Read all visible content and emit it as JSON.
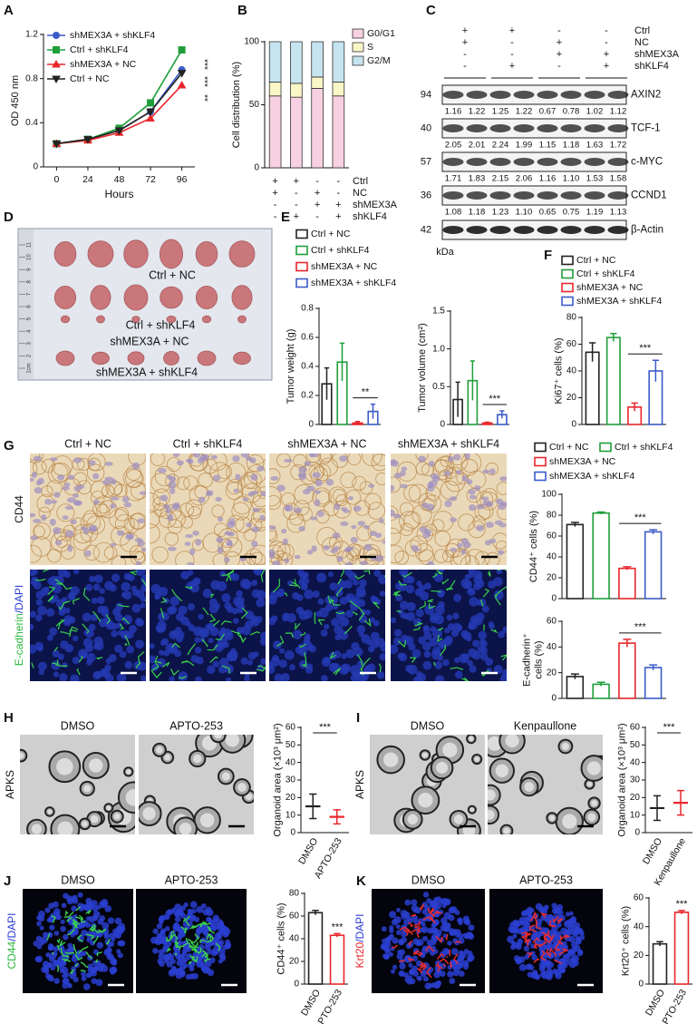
{
  "panel_letters": [
    "A",
    "B",
    "C",
    "D",
    "E",
    "F",
    "G",
    "H",
    "I",
    "J",
    "K"
  ],
  "group_legend": {
    "names": [
      "Ctrl + NC",
      "Ctrl + shKLF4",
      "shMEX3A + NC",
      "shMEX3A + shKLF4"
    ],
    "colors": [
      "#222222",
      "#1f9e3a",
      "#e8262b",
      "#3b5bc9"
    ]
  },
  "chart_data": [
    {
      "type": "line",
      "x_label": "Hours",
      "y_label": "OD 450 nm",
      "x": [
        0,
        24,
        48,
        72,
        96
      ],
      "xlim": [
        -10,
        106
      ],
      "xticks": [
        0,
        24,
        48,
        72,
        96
      ],
      "ylim": [
        0,
        1.2
      ],
      "yticks": [
        0,
        0.4,
        0.8,
        1.2
      ],
      "series": [
        {
          "name": "shMEX3A + shKLF4",
          "color": "#3b5bc9",
          "marker": "circle",
          "values": [
            0.21,
            0.25,
            0.33,
            0.5,
            0.88
          ]
        },
        {
          "name": "Ctrl + shKLF4",
          "color": "#1f9e3a",
          "marker": "square",
          "values": [
            0.21,
            0.25,
            0.35,
            0.58,
            1.06
          ]
        },
        {
          "name": "shMEX3A + NC",
          "color": "#e8262b",
          "marker": "triangle",
          "values": [
            0.21,
            0.24,
            0.31,
            0.44,
            0.74
          ]
        },
        {
          "name": "Ctrl + NC",
          "color": "#222222",
          "marker": "triangle-down",
          "values": [
            0.21,
            0.25,
            0.33,
            0.5,
            0.85
          ]
        }
      ],
      "annotations": [
        "***",
        "***",
        "**"
      ]
    },
    {
      "type": "stacked_bar",
      "y_label": "Cell distribution (%)",
      "ylim": [
        0,
        100
      ],
      "yticks": [
        0,
        50,
        100
      ],
      "series": [
        {
          "name": "G0/G1",
          "color": "#f7d0e1",
          "values": [
            57,
            56,
            63,
            57
          ]
        },
        {
          "name": "S",
          "color": "#fbf6c6",
          "values": [
            11,
            11,
            9,
            11
          ]
        },
        {
          "name": "G2/M",
          "color": "#c6e4ef",
          "values": [
            32,
            33,
            28,
            32
          ]
        }
      ],
      "sign_rows": [
        {
          "label": "Ctrl",
          "signs": [
            "+",
            "+",
            "-",
            "-"
          ]
        },
        {
          "label": "NC",
          "signs": [
            "+",
            "-",
            "+",
            "-"
          ]
        },
        {
          "label": "shMEX3A",
          "signs": [
            "-",
            "-",
            "+",
            "+"
          ]
        },
        {
          "label": "shKLF4",
          "signs": [
            "-",
            "+",
            "-",
            "+"
          ]
        }
      ]
    },
    {
      "type": "bar",
      "bar_style": "outline",
      "y_label": "Tumor weight (g)",
      "ylim": [
        0,
        0.8
      ],
      "yticks": [
        0,
        0.2,
        0.4,
        0.6,
        0.8
      ],
      "values": [
        0.28,
        0.43,
        0.01,
        0.09
      ],
      "errors": [
        0.11,
        0.13,
        0.01,
        0.05
      ],
      "colors": [
        "#222222",
        "#1f9e3a",
        "#e8262b",
        "#3b5bc9"
      ],
      "annotation": "**"
    },
    {
      "type": "bar",
      "bar_style": "outline",
      "y_label": "Tumor volume (cm²)",
      "ylim": [
        0,
        1.5
      ],
      "yticks": [
        0,
        0.5,
        {
          "value": 1,
          "label": "1.0"
        },
        1.5
      ],
      "values": [
        0.33,
        0.58,
        0.02,
        0.13
      ],
      "errors": [
        0.23,
        0.26,
        0.01,
        0.05
      ],
      "colors": [
        "#222222",
        "#1f9e3a",
        "#e8262b",
        "#3b5bc9"
      ],
      "annotation": "***"
    },
    {
      "type": "bar",
      "bar_style": "outline",
      "y_label": "Ki67⁺ cells (%)",
      "ylim": [
        0,
        80
      ],
      "yticks": [
        0,
        20,
        40,
        60,
        80
      ],
      "values": [
        54,
        65,
        13,
        40
      ],
      "errors": [
        7,
        3,
        3,
        8
      ],
      "colors": [
        "#222222",
        "#1f9e3a",
        "#e8262b",
        "#3b5bc9"
      ],
      "annotation": "***"
    },
    {
      "type": "bar",
      "bar_style": "outline",
      "y_label": "CD44⁺ cells (%)",
      "ylim": [
        0,
        100
      ],
      "yticks": [
        0,
        20,
        40,
        60,
        80,
        100
      ],
      "values": [
        71,
        82,
        29,
        64
      ],
      "errors": [
        2,
        1,
        1.5,
        2
      ],
      "colors": [
        "#222222",
        "#1f9e3a",
        "#e8262b",
        "#3b5bc9"
      ],
      "annotation": "***"
    },
    {
      "type": "bar",
      "bar_style": "outline",
      "y_label": [
        "E-cadherin⁺",
        "cells (%)"
      ],
      "ylim": [
        0,
        60
      ],
      "yticks": [
        0,
        20,
        40,
        60
      ],
      "values": [
        17,
        11,
        43,
        24
      ],
      "errors": [
        2,
        1.5,
        3,
        2
      ],
      "colors": [
        "#222222",
        "#1f9e3a",
        "#e8262b",
        "#3b5bc9"
      ],
      "annotation": "***"
    },
    {
      "type": "dot",
      "categories": [
        "DMSO",
        "APTO-253"
      ],
      "y_label": "Organoid area (×10³ μm²)",
      "ylim": [
        0,
        60
      ],
      "yticks": [
        0,
        10,
        20,
        30,
        40,
        50,
        60
      ],
      "values": [
        15,
        9
      ],
      "errors": [
        7,
        4
      ],
      "colors": [
        "#222222",
        "#e8262b"
      ],
      "annotation": "***"
    },
    {
      "type": "dot",
      "categories": [
        "DMSO",
        "Kenpaullone"
      ],
      "y_label": "Organoid area (×10³ μm²)",
      "ylim": [
        0,
        60
      ],
      "yticks": [
        0,
        10,
        20,
        30,
        40,
        50,
        60
      ],
      "values": [
        14,
        17
      ],
      "errors": [
        7,
        7
      ],
      "colors": [
        "#222222",
        "#e8262b"
      ],
      "annotation": "***"
    },
    {
      "type": "bar",
      "bar_style": "outline",
      "categories": [
        "DMSO",
        "APTO-253"
      ],
      "y_label": "CD44⁺ cells (%)",
      "ylim": [
        0,
        80
      ],
      "yticks": [
        0,
        20,
        40,
        60,
        80
      ],
      "values": [
        63,
        43
      ],
      "errors": [
        2,
        1.5
      ],
      "colors": [
        "#222222",
        "#e8262b"
      ],
      "annotation": "***"
    },
    {
      "type": "bar",
      "bar_style": "outline",
      "categories": [
        "DMSO",
        "APTO-253"
      ],
      "y_label": "Krt20⁺ cells (%)",
      "ylim": [
        0,
        60
      ],
      "yticks": [
        0,
        20,
        40,
        60
      ],
      "values": [
        28,
        50
      ],
      "errors": [
        1.5,
        1.2
      ],
      "colors": [
        "#222222",
        "#e8262b"
      ],
      "annotation": "***"
    }
  ],
  "blot": {
    "header_rows": [
      {
        "label": "Ctrl",
        "signs": [
          "+",
          "+",
          "-",
          "-"
        ]
      },
      {
        "label": "NC",
        "signs": [
          "+",
          "-",
          "+",
          "-"
        ]
      },
      {
        "label": "shMEX3A",
        "signs": [
          "-",
          "-",
          "+",
          "+"
        ]
      },
      {
        "label": "shKLF4",
        "signs": [
          "-",
          "+",
          "-",
          "+"
        ]
      }
    ],
    "rows": [
      {
        "marker": "94",
        "protein": "AXIN2",
        "quant": [
          "1.16",
          "1.22",
          "1.25",
          "1.22",
          "0.67",
          "0.78",
          "1.02",
          "1.12"
        ]
      },
      {
        "marker": "40",
        "protein": "TCF-1",
        "quant": [
          "2.05",
          "2.01",
          "2.24",
          "1.99",
          "1.15",
          "1.18",
          "1.63",
          "1.72"
        ]
      },
      {
        "marker": "57",
        "protein": "c-MYC",
        "quant": [
          "1.71",
          "1.83",
          "2.15",
          "2.06",
          "1.16",
          "1.10",
          "1.53",
          "1.58"
        ]
      },
      {
        "marker": "36",
        "protein": "CCND1",
        "quant": [
          "1.08",
          "1.18",
          "1.23",
          "1.10",
          "0.65",
          "0.75",
          "1.19",
          "1.13"
        ]
      },
      {
        "marker": "42",
        "protein": "β-Actin"
      }
    ],
    "unit": "kDa"
  },
  "photo": {
    "ruler_labels": [
      "1cm",
      "2",
      "3",
      "4",
      "5",
      "6",
      "7",
      "8",
      "9",
      "10",
      "11"
    ],
    "group_labels": [
      "Ctrl + NC",
      "Ctrl + shKLF4",
      "shMEX3A + NC",
      "shMEX3A + shKLF4"
    ]
  },
  "micrographs": {
    "G": {
      "columns": [
        "Ctrl + NC",
        "Ctrl + shKLF4",
        "shMEX3A + NC",
        "shMEX3A + shKLF4"
      ],
      "rows": [
        [
          {
            "text": "CD44",
            "color": "#111111"
          }
        ],
        [
          {
            "text": "E-cadherin",
            "color": "#2db83f"
          },
          {
            "text": "/DAPI",
            "color": "#2a3cd6"
          }
        ]
      ]
    },
    "H": {
      "columns": [
        "DMSO",
        "APTO-253"
      ],
      "rows": [
        [
          {
            "text": "APKS",
            "color": "#111111"
          }
        ]
      ]
    },
    "I": {
      "columns": [
        "DMSO",
        "Kenpaullone"
      ],
      "rows": [
        [
          {
            "text": "APKS",
            "color": "#111111"
          }
        ]
      ]
    },
    "J": {
      "columns": [
        "DMSO",
        "APTO-253"
      ],
      "rows": [
        [
          {
            "text": "CD44",
            "color": "#2db83f"
          },
          {
            "text": "/DAPI",
            "color": "#2a3cd6"
          }
        ]
      ]
    },
    "K": {
      "columns": [
        "DMSO",
        "APTO-253"
      ],
      "rows": [
        [
          {
            "text": "Krt20",
            "color": "#e8262b"
          },
          {
            "text": "/DAPI",
            "color": "#2a3cd6"
          }
        ]
      ]
    }
  }
}
